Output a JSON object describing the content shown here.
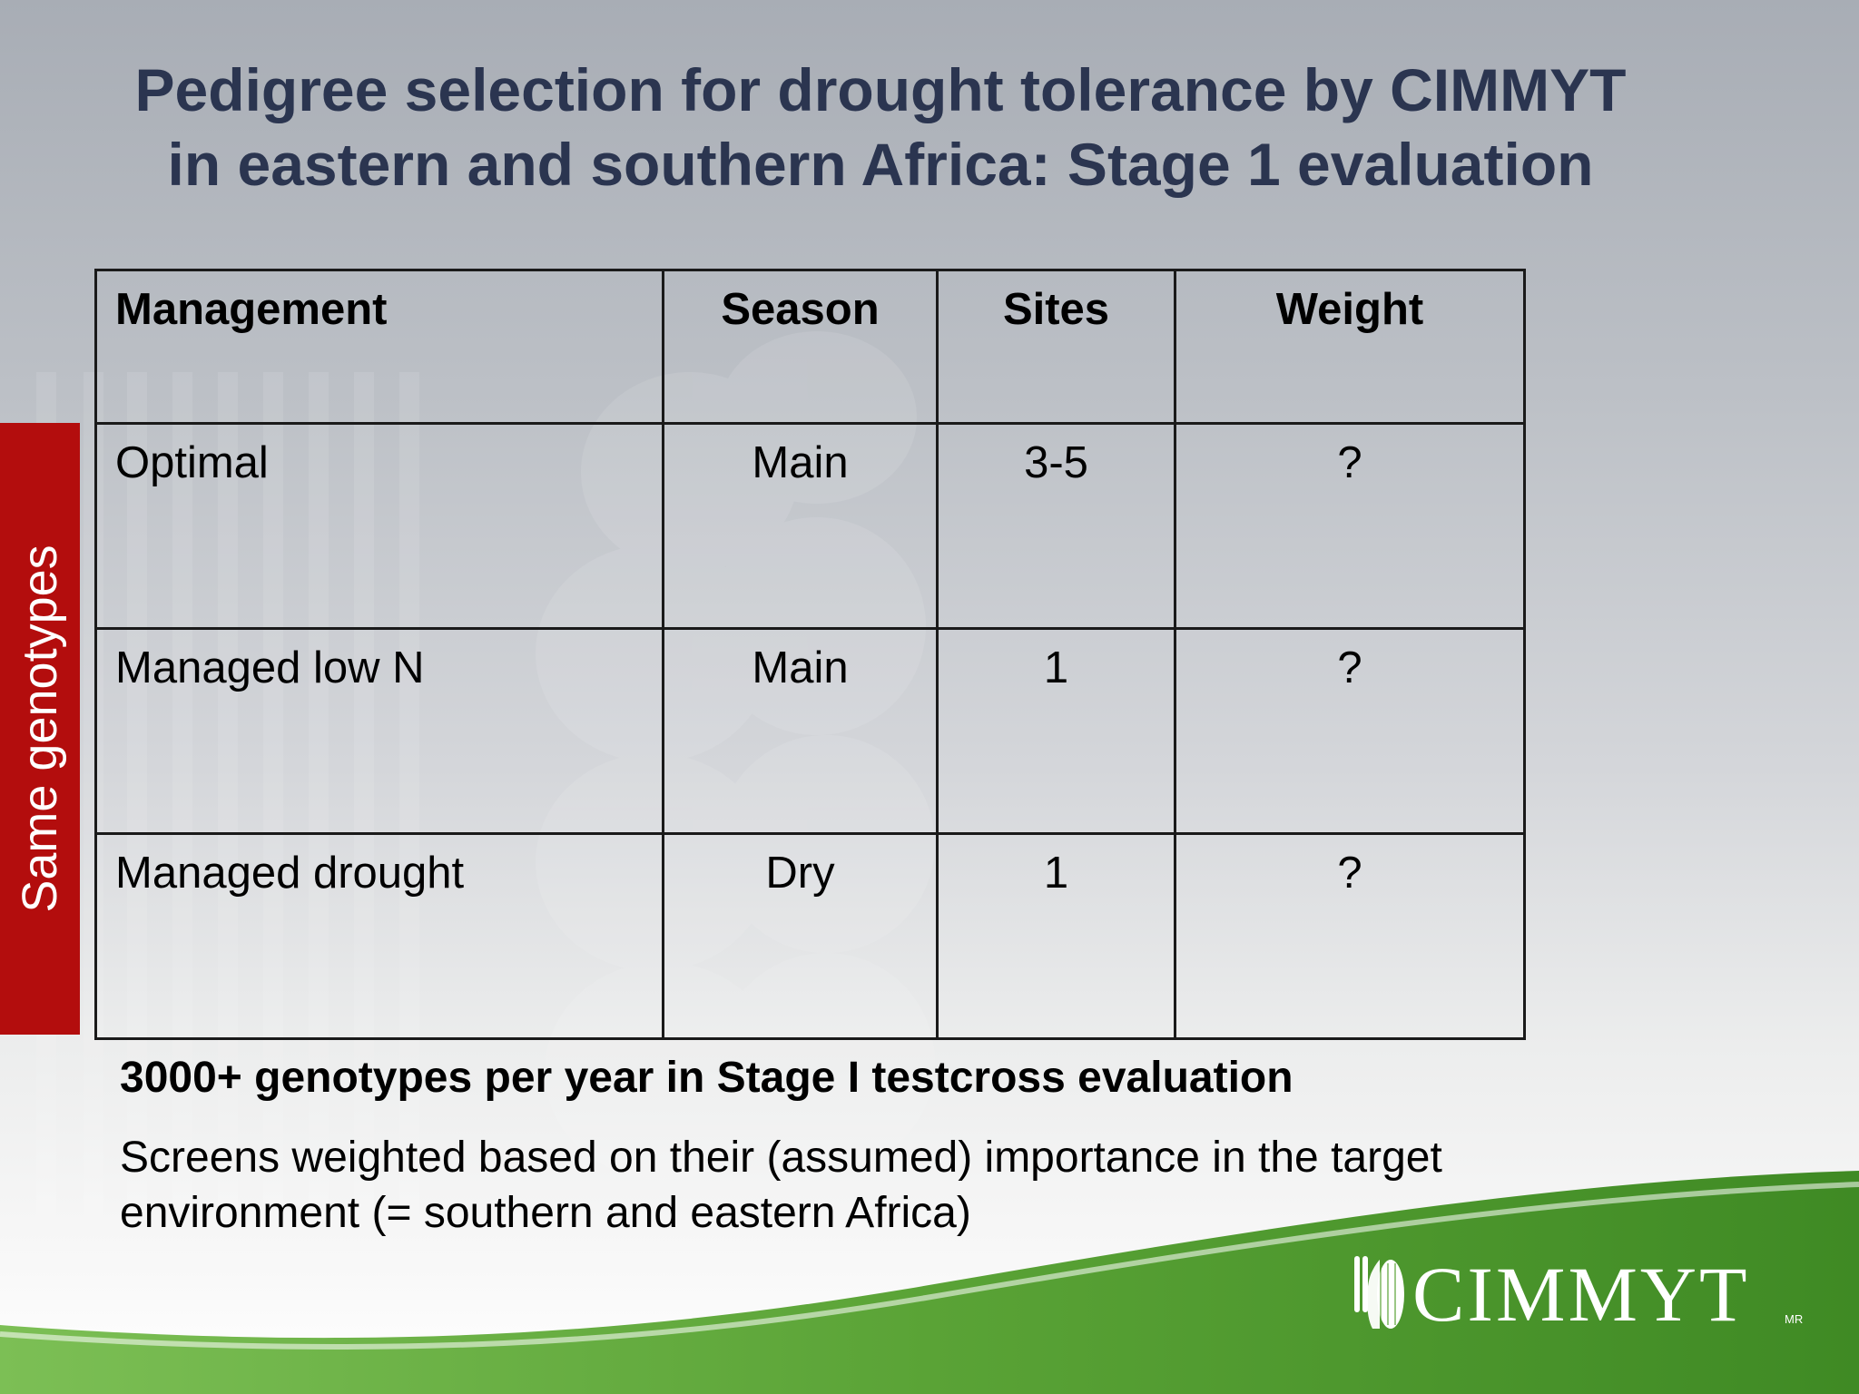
{
  "slide": {
    "title_lines": [
      "Pedigree selection for drought tolerance by CIMMYT",
      "in eastern and southern Africa: Stage 1 evaluation"
    ],
    "side_label": "Same genotypes"
  },
  "table": {
    "headers": [
      "Management",
      "Season",
      "Sites",
      "Weight"
    ],
    "rows": [
      [
        "Optimal",
        "Main",
        "3-5",
        "?"
      ],
      [
        "Managed low N",
        "Main",
        "1",
        "?"
      ],
      [
        "Managed drought",
        "Dry",
        "1",
        "?"
      ]
    ]
  },
  "notes": {
    "bold": "3000+ genotypes per year in Stage I testcross evaluation",
    "plain": "Screens weighted based on their (assumed) importance in the target environment (= southern and eastern Africa)"
  },
  "logo": {
    "name": "CIMMYT",
    "mark": "MR",
    "icon": "wheat-maize-icon"
  },
  "colors": {
    "title": "#2b3550",
    "side_tab": "#b30d0d",
    "green": "#4e9a2e"
  }
}
